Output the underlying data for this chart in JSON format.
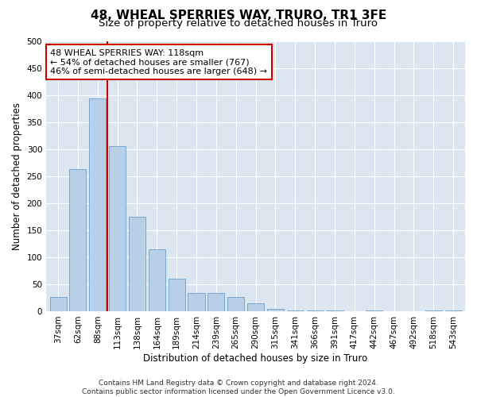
{
  "title": "48, WHEAL SPERRIES WAY, TRURO, TR1 3FE",
  "subtitle": "Size of property relative to detached houses in Truro",
  "xlabel": "Distribution of detached houses by size in Truro",
  "ylabel": "Number of detached properties",
  "footer_line1": "Contains HM Land Registry data © Crown copyright and database right 2024.",
  "footer_line2": "Contains public sector information licensed under the Open Government Licence v3.0.",
  "categories": [
    "37sqm",
    "62sqm",
    "88sqm",
    "113sqm",
    "138sqm",
    "164sqm",
    "189sqm",
    "214sqm",
    "239sqm",
    "265sqm",
    "290sqm",
    "315sqm",
    "341sqm",
    "366sqm",
    "391sqm",
    "417sqm",
    "442sqm",
    "467sqm",
    "492sqm",
    "518sqm",
    "543sqm"
  ],
  "values": [
    27,
    263,
    393,
    305,
    175,
    115,
    60,
    33,
    33,
    27,
    15,
    5,
    2,
    1,
    1,
    0,
    2,
    0,
    0,
    1,
    2
  ],
  "bar_color": "#b8cfe8",
  "bar_edge_color": "#6e9ec8",
  "vline_x_idx": 2.5,
  "vline_color": "#cc0000",
  "annotation_text": "48 WHEAL SPERRIES WAY: 118sqm\n← 54% of detached houses are smaller (767)\n46% of semi-detached houses are larger (648) →",
  "annotation_box_facecolor": "#ffffff",
  "annotation_box_edgecolor": "#cc0000",
  "ylim": [
    0,
    500
  ],
  "yticks": [
    0,
    50,
    100,
    150,
    200,
    250,
    300,
    350,
    400,
    450,
    500
  ],
  "plot_bg_color": "#dce6f0",
  "title_fontsize": 11,
  "subtitle_fontsize": 9.5,
  "axis_label_fontsize": 8.5,
  "tick_fontsize": 7.5,
  "annotation_fontsize": 8,
  "footer_fontsize": 6.5
}
